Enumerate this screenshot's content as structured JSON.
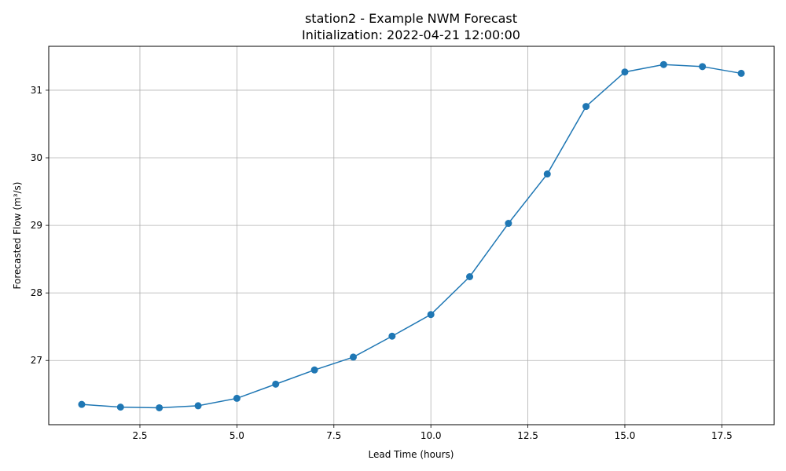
{
  "chart_data": {
    "type": "line",
    "title": "station2 - Example NWM Forecast",
    "subtitle": "Initialization: 2022-04-21 12:00:00",
    "xlabel": "Lead Time (hours)",
    "ylabel": "Forecasted Flow (m³/s)",
    "xlim": [
      0.15,
      18.85
    ],
    "ylim": [
      26.05,
      31.65
    ],
    "xticks": [
      2.5,
      5.0,
      7.5,
      10.0,
      12.5,
      15.0,
      17.5
    ],
    "xtick_labels": [
      "2.5",
      "5.0",
      "7.5",
      "10.0",
      "12.5",
      "15.0",
      "17.5"
    ],
    "yticks": [
      27,
      28,
      29,
      30,
      31
    ],
    "ytick_labels": [
      "27",
      "28",
      "29",
      "30",
      "31"
    ],
    "grid": true,
    "color": "#1f77b4",
    "series": [
      {
        "x": [
          1,
          2,
          3,
          4,
          5,
          6,
          7,
          8,
          9,
          10,
          11,
          12,
          13,
          14,
          15,
          16,
          17,
          18
        ],
        "values": [
          26.35,
          26.31,
          26.3,
          26.33,
          26.44,
          26.65,
          26.86,
          27.05,
          27.36,
          27.68,
          28.24,
          29.03,
          29.76,
          30.76,
          31.27,
          31.38,
          31.35,
          31.25
        ]
      }
    ]
  }
}
